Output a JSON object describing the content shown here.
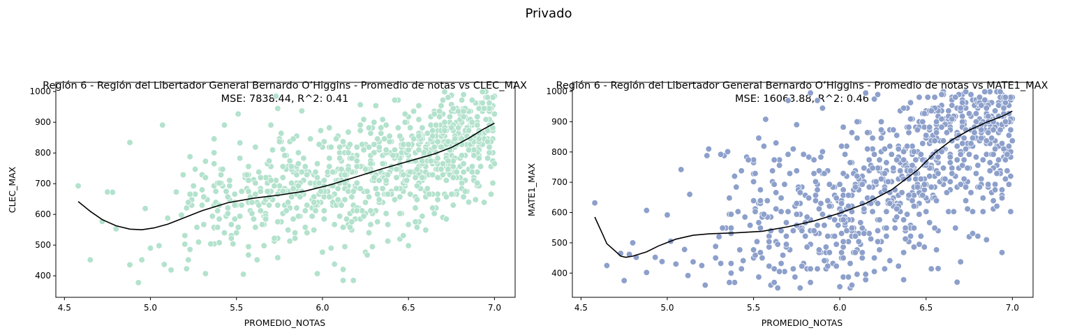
{
  "suptitle": "Privado",
  "colors": {
    "left_points": "#b3e2cd",
    "right_points": "#8da0cb",
    "curve": "#000000",
    "axes": "#000000"
  },
  "chart_data": [
    {
      "type": "scatter",
      "title_line1": "Región 6 - Región del Libertador General Bernardo O’Higgins - Promedio de notas vs CLEC_MAX",
      "title_line2": "MSE: 7838.44, R^2: 0.41",
      "xlabel": "PROMEDIO_NOTAS",
      "ylabel": "CLEC_MAX",
      "xlim": [
        4.45,
        7.12
      ],
      "ylim": [
        330,
        1030
      ],
      "xticks": [
        "4.5",
        "5.0",
        "5.5",
        "6.0",
        "6.5",
        "7.0"
      ],
      "yticks": [
        "400",
        "500",
        "600",
        "700",
        "800",
        "900",
        "1000"
      ],
      "point_color": "#b3e2cd",
      "curve_color": "#000000",
      "trend": {
        "x": [
          4.58,
          4.65,
          4.72,
          4.8,
          4.88,
          4.95,
          5.02,
          5.1,
          5.2,
          5.3,
          5.45,
          5.6,
          5.75,
          5.9,
          6.05,
          6.2,
          6.35,
          6.5,
          6.65,
          6.75,
          6.85,
          6.93,
          7.0
        ],
        "y": [
          642,
          610,
          583,
          563,
          552,
          550,
          556,
          568,
          590,
          612,
          638,
          653,
          663,
          676,
          697,
          723,
          749,
          773,
          797,
          818,
          848,
          876,
          897
        ]
      },
      "noise": 95,
      "density": {
        "start": 5.1,
        "end": 7.0,
        "count": 850,
        "skew": 0.55
      },
      "seed": 17,
      "outliers": [
        [
          4.58,
          693
        ],
        [
          4.65,
          452
        ],
        [
          4.72,
          577
        ],
        [
          4.75,
          673
        ],
        [
          4.78,
          672
        ],
        [
          4.8,
          553
        ],
        [
          4.88,
          834
        ],
        [
          4.88,
          436
        ],
        [
          4.93,
          378
        ],
        [
          4.95,
          452
        ],
        [
          4.97,
          619
        ],
        [
          5.0,
          490
        ],
        [
          5.05,
          498
        ],
        [
          5.07,
          891
        ],
        [
          5.08,
          437
        ],
        [
          5.1,
          588
        ],
        [
          5.12,
          419
        ],
        [
          5.15,
          673
        ],
        [
          5.18,
          598
        ],
        [
          5.2,
          503
        ],
        [
          5.22,
          452
        ],
        [
          5.23,
          788
        ],
        [
          5.25,
          693
        ],
        [
          5.28,
          510
        ],
        [
          5.3,
          680
        ],
        [
          5.32,
          407
        ],
        [
          5.32,
          773
        ],
        [
          5.37,
          555
        ],
        [
          5.4,
          508
        ],
        [
          5.43,
          891
        ],
        [
          5.52,
          833
        ],
        [
          5.6,
          713
        ],
        [
          5.62,
          452
        ],
        [
          5.66,
          498
        ],
        [
          5.7,
          891
        ],
        [
          5.73,
          985
        ],
        [
          5.77,
          812
        ],
        [
          5.88,
          937
        ],
        [
          5.97,
          407
        ],
        [
          6.05,
          490
        ],
        [
          6.07,
          438
        ],
        [
          6.12,
          385
        ],
        [
          6.12,
          421
        ],
        [
          6.15,
          868
        ],
        [
          6.18,
          385
        ],
        [
          6.22,
          957
        ],
        [
          6.45,
          520
        ],
        [
          6.5,
          498
        ],
        [
          6.7,
          590
        ],
        [
          6.75,
          958
        ],
        [
          6.75,
          988
        ],
        [
          6.85,
          640
        ],
        [
          6.95,
          1000
        ],
        [
          7.0,
          985
        ]
      ]
    },
    {
      "type": "scatter",
      "title_line1": "Región 6 - Región del Libertador General Bernardo O’Higgins - Promedio de notas vs MATE1_MAX",
      "title_line2": "MSE: 16063.88, R^2: 0.46",
      "xlabel": "PROMEDIO_NOTAS",
      "ylabel": "MATE1_MAX",
      "xlim": [
        4.45,
        7.12
      ],
      "ylim": [
        320,
        1030
      ],
      "xticks": [
        "4.5",
        "5.0",
        "5.5",
        "6.0",
        "6.5",
        "7.0"
      ],
      "yticks": [
        "400",
        "500",
        "600",
        "700",
        "800",
        "900",
        "1000"
      ],
      "point_color": "#8da0cb",
      "curve_color": "#000000",
      "trend": {
        "x": [
          4.58,
          4.62,
          4.65,
          4.7,
          4.73,
          4.76,
          4.8,
          4.88,
          4.95,
          5.05,
          5.15,
          5.25,
          5.4,
          5.55,
          5.7,
          5.85,
          6.0,
          6.15,
          6.3,
          6.45,
          6.55,
          6.65,
          6.75,
          6.85,
          6.95,
          7.0
        ],
        "y": [
          585,
          535,
          497,
          472,
          456,
          452,
          456,
          470,
          490,
          512,
          525,
          530,
          533,
          538,
          553,
          572,
          598,
          630,
          675,
          740,
          797,
          840,
          872,
          898,
          920,
          935
        ]
      },
      "noise": 140,
      "density": {
        "start": 5.2,
        "end": 7.0,
        "count": 900,
        "skew": 0.55
      },
      "seed": 41,
      "outliers": [
        [
          4.58,
          632
        ],
        [
          4.65,
          425
        ],
        [
          4.73,
          465
        ],
        [
          4.75,
          375
        ],
        [
          4.78,
          462
        ],
        [
          4.8,
          500
        ],
        [
          4.82,
          452
        ],
        [
          4.88,
          607
        ],
        [
          4.88,
          402
        ],
        [
          4.93,
          452
        ],
        [
          4.97,
          438
        ],
        [
          5.0,
          592
        ],
        [
          5.02,
          505
        ],
        [
          5.05,
          430
        ],
        [
          5.08,
          742
        ],
        [
          5.1,
          478
        ],
        [
          5.12,
          392
        ],
        [
          5.13,
          660
        ],
        [
          5.15,
          437
        ],
        [
          5.2,
          425
        ],
        [
          5.22,
          360
        ],
        [
          5.23,
          788
        ],
        [
          5.28,
          488
        ],
        [
          5.3,
          520
        ],
        [
          5.33,
          788
        ],
        [
          5.37,
          400
        ],
        [
          5.45,
          585
        ],
        [
          5.5,
          728
        ],
        [
          5.57,
          908
        ],
        [
          5.6,
          360
        ],
        [
          5.63,
          830
        ],
        [
          5.7,
          970
        ],
        [
          5.75,
          890
        ],
        [
          5.83,
          995
        ],
        [
          5.87,
          970
        ],
        [
          5.9,
          945
        ],
        [
          6.0,
          355
        ],
        [
          6.15,
          995
        ],
        [
          6.2,
          975
        ],
        [
          6.57,
          415
        ],
        [
          6.68,
          370
        ],
        [
          6.7,
          437
        ],
        [
          6.75,
          520
        ],
        [
          6.85,
          510
        ]
      ]
    }
  ]
}
